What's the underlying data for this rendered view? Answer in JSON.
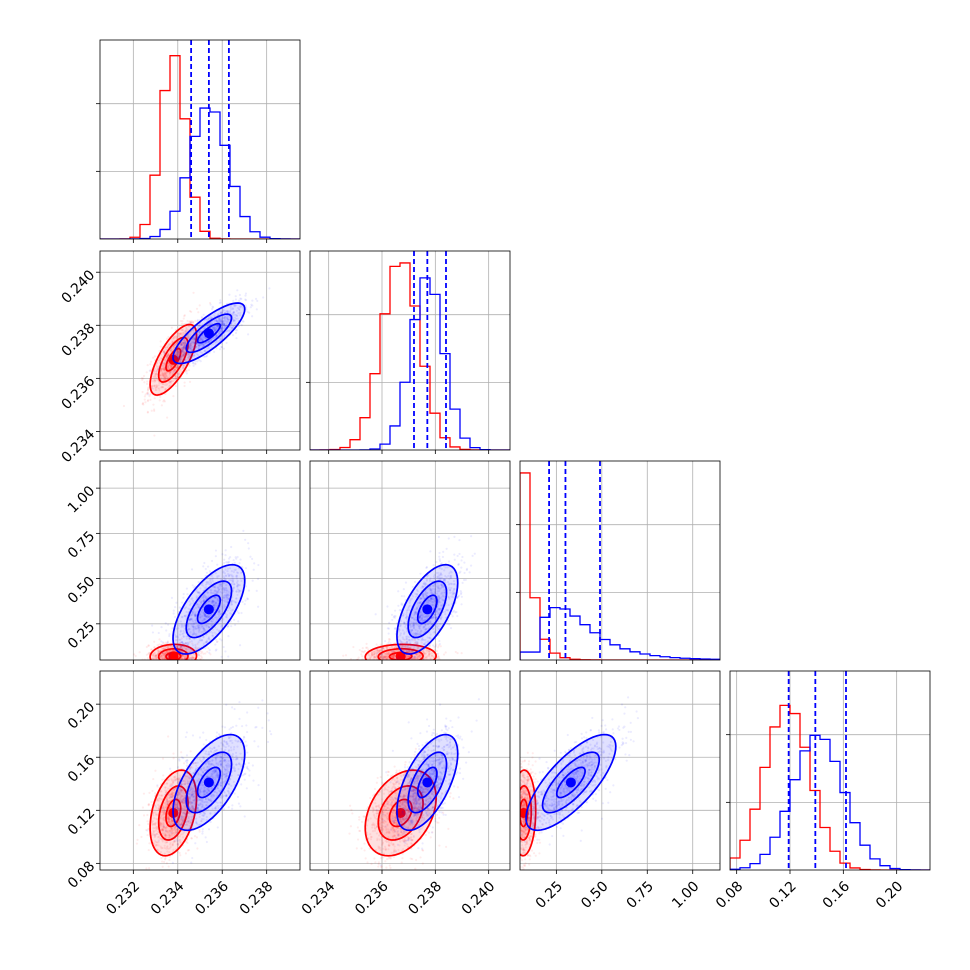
{
  "chart_data": {
    "type": "corner",
    "colors": {
      "series_a": "#ff0000",
      "series_b": "#0000ff"
    },
    "grid": true,
    "parameters": [
      {
        "ticks": [
          0.232,
          0.234,
          0.236,
          0.238
        ],
        "tick_labels": [
          "0.232",
          "0.234",
          "0.236",
          "0.238"
        ],
        "range": [
          0.2305,
          0.2395
        ]
      },
      {
        "ticks": [
          0.234,
          0.236,
          0.238,
          0.24
        ],
        "tick_labels": [
          "0.234",
          "0.236",
          "0.238",
          "0.240"
        ],
        "range": [
          0.2333,
          0.2408
        ]
      },
      {
        "ticks": [
          0.25,
          0.5,
          0.75,
          1.0
        ],
        "tick_labels": [
          "0.25",
          "0.50",
          "0.75",
          "1.00"
        ],
        "range": [
          0.05,
          1.15
        ]
      },
      {
        "ticks": [
          0.08,
          0.12,
          0.16,
          0.2
        ],
        "tick_labels": [
          "0.08",
          "0.12",
          "0.16",
          "0.20"
        ],
        "range": [
          0.075,
          0.225
        ]
      }
    ],
    "series": [
      {
        "color": "#ff0000",
        "means": [
          0.2338,
          0.2367,
          0.07,
          0.118
        ],
        "sds": [
          0.00055,
          0.0007,
          0.035,
          0.017
        ],
        "corr": [
          [
            1,
            0.7,
            0.05,
            0.35
          ],
          [
            0.7,
            1,
            0.05,
            0.35
          ],
          [
            0.05,
            0.05,
            1,
            0.05
          ],
          [
            0.35,
            0.35,
            0.05,
            1
          ]
        ],
        "hist_peak": [
          0.98,
          1.0,
          1.0,
          0.88
        ]
      },
      {
        "color": "#0000ff",
        "means": [
          0.2354,
          0.2377,
          0.33,
          0.141
        ],
        "sds": [
          0.00085,
          0.0006,
          0.13,
          0.019
        ],
        "corr": [
          [
            1,
            0.8,
            0.65,
            0.6
          ],
          [
            0.8,
            1,
            0.6,
            0.6
          ],
          [
            0.65,
            0.6,
            1,
            0.75
          ],
          [
            0.6,
            0.6,
            0.75,
            1
          ]
        ],
        "hist_peak": [
          0.7,
          0.92,
          0.28,
          0.72
        ],
        "quantiles": [
          [
            0.2346,
            0.2354,
            0.2363
          ],
          [
            0.2372,
            0.2377,
            0.2384
          ],
          [
            0.21,
            0.3,
            0.49
          ],
          [
            0.119,
            0.139,
            0.162
          ]
        ]
      }
    ]
  }
}
